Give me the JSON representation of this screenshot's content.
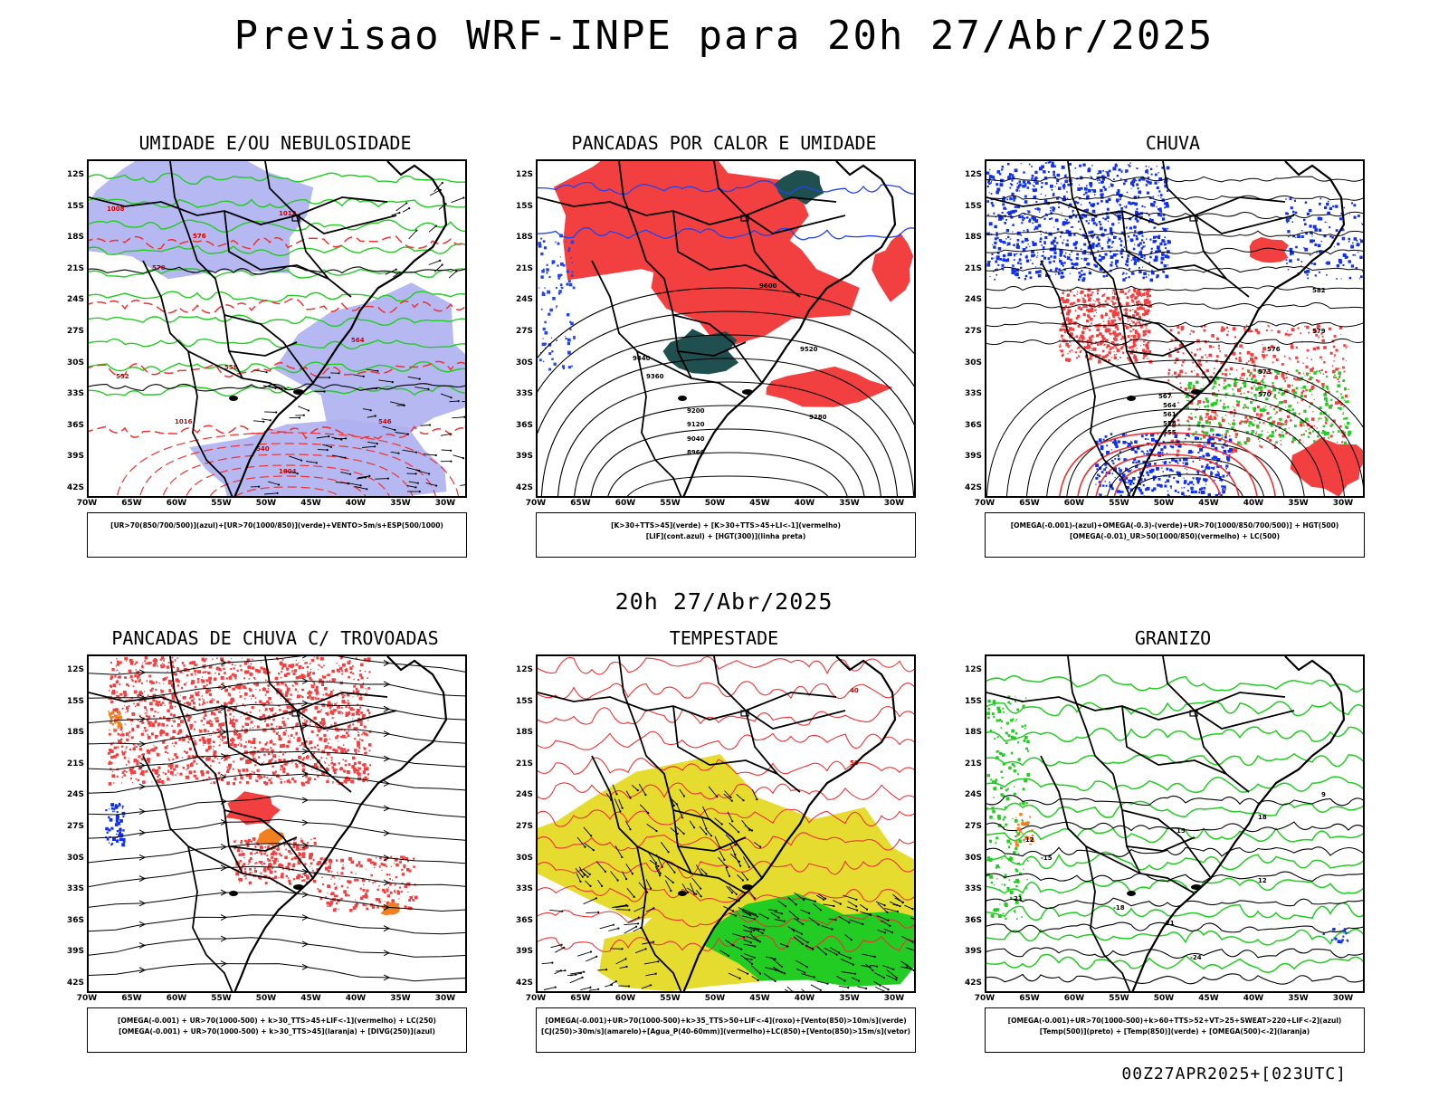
{
  "header": {
    "title": "Previsao WRF-INPE  para 20h 27/Abr/2025",
    "mid_date": "20h 27/Abr/2025",
    "footer": "00Z27APR2025+[023UTC]"
  },
  "axes": {
    "lat_labels": [
      "12S",
      "15S",
      "18S",
      "21S",
      "24S",
      "27S",
      "30S",
      "33S",
      "36S",
      "39S",
      "42S"
    ],
    "lon_labels": [
      "70W",
      "65W",
      "60W",
      "55W",
      "50W",
      "45W",
      "40W",
      "35W",
      "30W"
    ]
  },
  "panels": [
    {
      "title": "UMIDADE E/OU NEBULOSIDADE",
      "legend_lines": [
        "[UR>70(850/700/500)](azul)+[UR>70(1000/850)](verde)+VENTO>5m/s+ESP(500/1000)"
      ],
      "contour_labels": [
        "1016",
        "1012",
        "1008",
        "1004",
        "576",
        "570",
        "564",
        "558",
        "552",
        "546",
        "540"
      ]
    },
    {
      "title": "PANCADAS POR CALOR E UMIDADE",
      "legend_lines": [
        "[K>30+TTS>45](verde) + [K>30+TTS>45+LI<-1](vermelho)",
        "[LIF](cont.azul) + [HGT(300)](linha preta)"
      ],
      "contour_labels": [
        "9600",
        "9520",
        "9440",
        "9360",
        "9280",
        "9200",
        "9120",
        "9040",
        "8960"
      ]
    },
    {
      "title": "CHUVA",
      "legend_lines": [
        "[OMEGA(-0.001)-(azul)+OMEGA(-0.3)-(verde)+UR>70(1000/850/700/500)] + HGT(500)",
        "[OMEGA(-0.01)_UR>50(1000/850)(vermelho) + LC(500)"
      ],
      "contour_labels": [
        "582",
        "579",
        "576",
        "573",
        "570",
        "567",
        "564",
        "561",
        "558",
        "555"
      ]
    },
    {
      "title": "PANCADAS DE CHUVA C/ TROVOADAS",
      "legend_lines": [
        "[OMEGA(-0.001) + UR>70(1000-500) + k>30_TTS>45+LIF<-1](vermelho) + LC(250)",
        "[OMEGA(-0.001) + UR>70(1000-500) + k>30_TTS>45](laranja) + [DIVG(250)](azul)"
      ],
      "contour_labels": []
    },
    {
      "title": "TEMPESTADE",
      "legend_lines": [
        "[OMEGA(-0.001)+UR>70(1000-500)+k>35_TTS>50+LIF<-4](roxo)+[Vento(850)>10m/s](verde)",
        "[CJ(250)>30m/s](amarelo)+[Agua_P(40-60mm)](vermelho)+LC(850)+[Vento(850)>15m/s](vetor)"
      ],
      "contour_labels": [
        "40",
        "50"
      ]
    },
    {
      "title": "GRANIZO",
      "legend_lines": [
        "[OMEGA(-0.001)+UR>70(1000-500)+k>60+TTS>52+VT>25+SWEAT>220+LIF<-2](azul)",
        "[Temp(500)](preto) + [Temp(850)](verde) + [OMEGA(500)<-2](laranja)"
      ],
      "contour_labels": [
        "-12",
        "-15",
        "-18",
        "-21",
        "-24",
        "15",
        "18",
        "21",
        "12",
        "9"
      ]
    }
  ],
  "colors": {
    "blue_fill": "#aeb0ef",
    "green_line": "#22cc22",
    "red_line": "#ee3333",
    "red_fill": "#f24040",
    "dark_teal": "#1f4f4f",
    "yellow_fill": "#e6dc30",
    "green_fill": "#22cc22",
    "orange_fill": "#f08020",
    "blue_dot": "#1030ee"
  }
}
